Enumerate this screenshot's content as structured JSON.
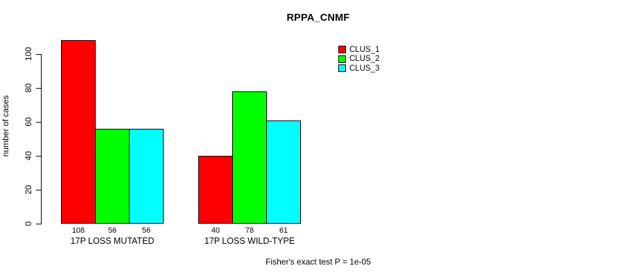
{
  "chart_data": {
    "type": "bar",
    "title": "RPPA_CNMF",
    "xlabel": "",
    "ylabel": "number of cases",
    "caption": "Fisher's exact test P = 1e-05",
    "categories": [
      "17P LOSS MUTATED",
      "17P LOSS WILD-TYPE"
    ],
    "series": [
      {
        "name": "CLUS_1",
        "color": "#ff0000",
        "values": [
          108,
          40
        ]
      },
      {
        "name": "CLUS_2",
        "color": "#00ff00",
        "values": [
          56,
          78
        ]
      },
      {
        "name": "CLUS_3",
        "color": "#00ffff",
        "values": [
          56,
          61
        ]
      }
    ],
    "bar_value_labels": [
      [
        108,
        56,
        56
      ],
      [
        40,
        78,
        61
      ]
    ],
    "ylim": [
      0,
      100
    ],
    "yticks": [
      0,
      20,
      40,
      60,
      80,
      100
    ],
    "grid": false,
    "legend_position": "top-right",
    "background": "#ffffff",
    "bar_border_color": "#000000"
  }
}
